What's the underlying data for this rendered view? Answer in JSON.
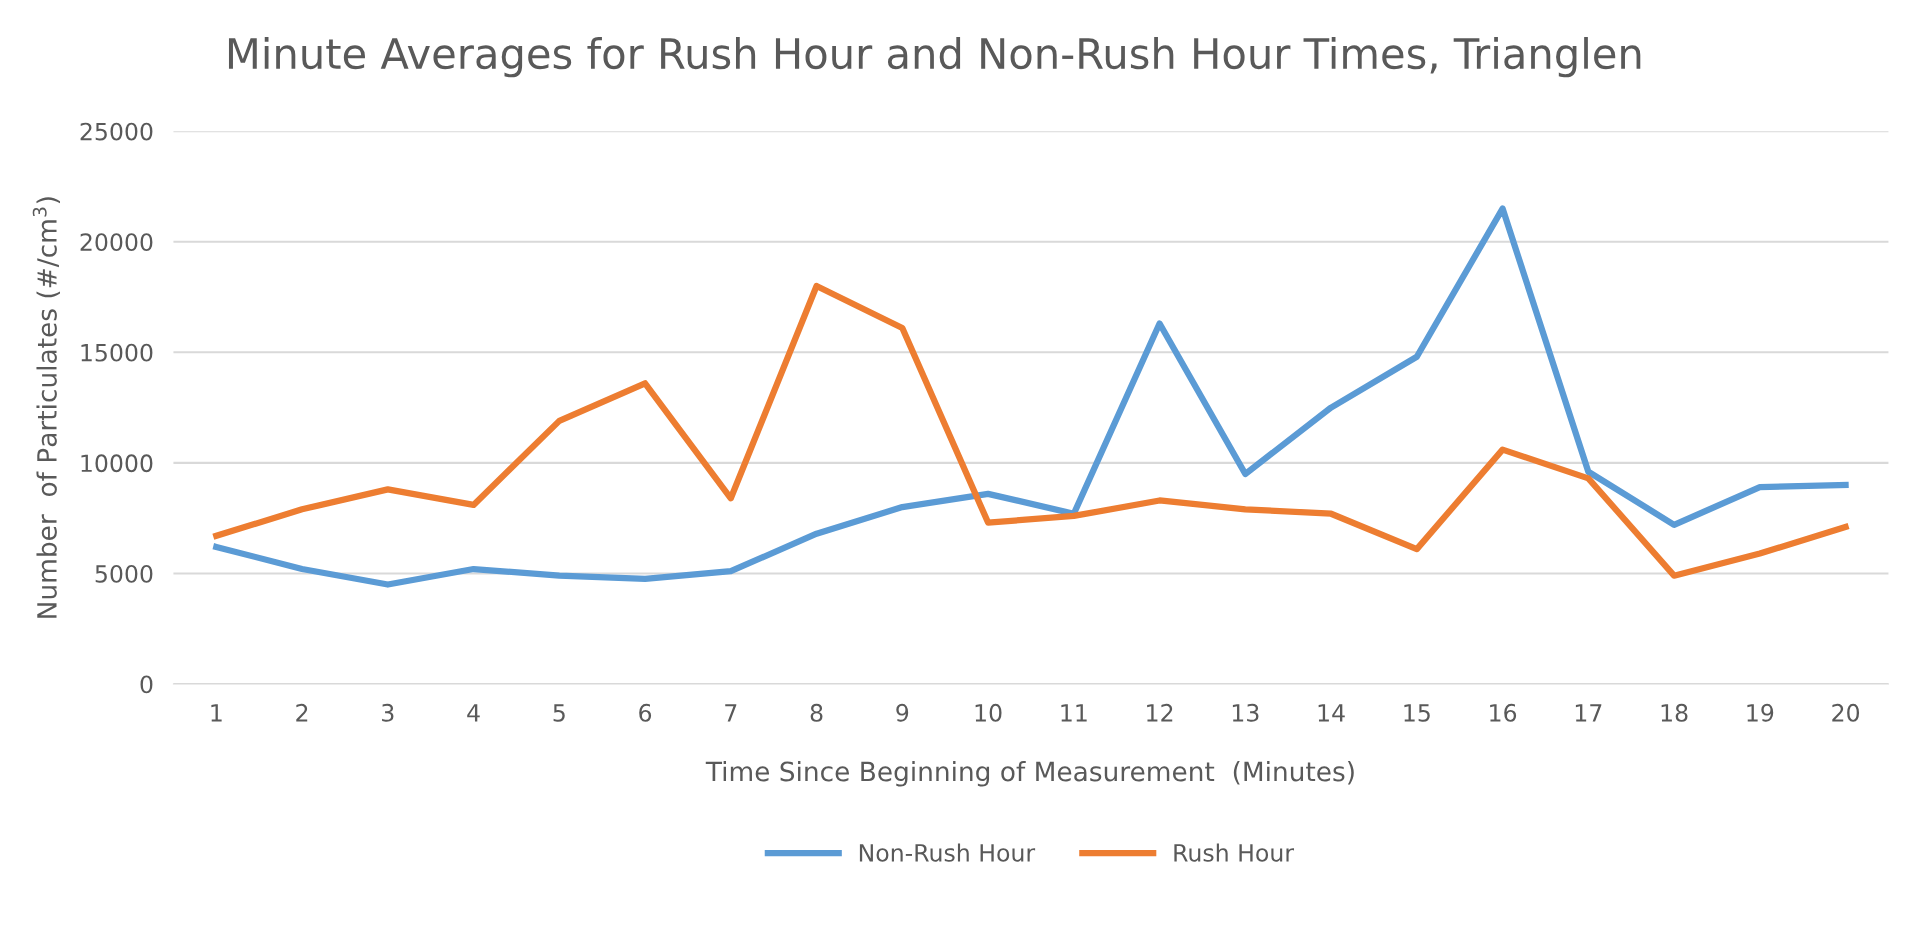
{
  "chart_data": {
    "type": "line",
    "title": "Minute Averages for Rush Hour and Non-Rush Hour Times, Trianglen",
    "xlabel": "Time Since Beginning of Measurement  (Minutes)",
    "ylabel": "Number  of Particulates (#/cm$^{3}$)",
    "categories": [
      "1",
      "2",
      "3",
      "4",
      "5",
      "6",
      "7",
      "8",
      "9",
      "10",
      "11",
      "12",
      "13",
      "14",
      "15",
      "16",
      "17",
      "18",
      "19",
      "20"
    ],
    "series": [
      {
        "name": "Non-Rush Hour",
        "color": "#5b9bd5",
        "values": [
          6200,
          5200,
          4500,
          5200,
          4900,
          4750,
          5100,
          6800,
          8000,
          8600,
          7700,
          16300,
          9500,
          12500,
          14800,
          21500,
          9600,
          7200,
          8900,
          9000
        ]
      },
      {
        "name": "Rush Hour",
        "color": "#ed7d31",
        "values": [
          6700,
          7900,
          8800,
          8100,
          11900,
          13600,
          8400,
          18000,
          16100,
          7300,
          7600,
          8300,
          7900,
          7700,
          6100,
          10600,
          9300,
          4900,
          5900,
          7100
        ]
      }
    ],
    "ylim": [
      0,
      25000
    ],
    "yticks": [
      0,
      5000,
      10000,
      15000,
      20000,
      25000
    ],
    "grid": "y",
    "legend": "bottom",
    "marker": "none",
    "line_style": "solid"
  }
}
